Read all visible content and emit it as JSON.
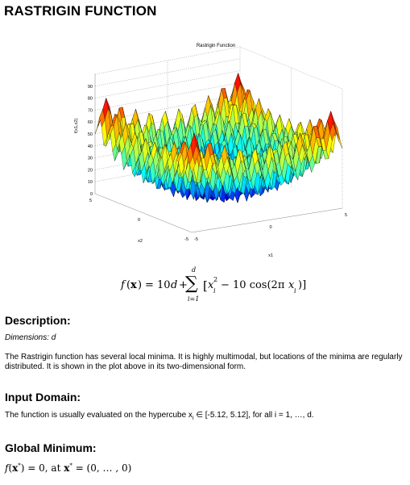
{
  "page": {
    "title": "RASTRIGIN FUNCTION"
  },
  "figure": {
    "plot_title": "Rastrigin Function",
    "zlabel": "f(x1,x2)",
    "xlabel": "x1",
    "ylabel": "x2",
    "z_ticks": [
      "0",
      "10",
      "20",
      "30",
      "40",
      "50",
      "60",
      "70",
      "80",
      "90"
    ],
    "x1_ticks": [
      "-5",
      "0",
      "5"
    ],
    "x2_ticks": [
      "5",
      "0",
      "-5"
    ],
    "colors": {
      "low": "#0000a0",
      "mid": "#30d070",
      "high": "#b00000"
    }
  },
  "formula": {
    "lhs_f": "f",
    "lhs_x": "x",
    "eq": "= 10",
    "d": "d",
    "plus": "+",
    "sum_symbol": "∑",
    "sum_top": "d",
    "sum_bottom": "i=1",
    "bracket_open": "[",
    "x": "x",
    "sub_i": "i",
    "sup_2": "2",
    "minus_term": "− 10 cos(2π",
    "x2": "x",
    "sub_i2": "i",
    "close": ")]"
  },
  "description": {
    "heading": "Description:",
    "dimensions": "Dimensions: d",
    "text": "The Rastrigin function has several local minima. It is highly multimodal, but locations of the minima are regularly distributed. It is shown in the plot above in its two-dimensional form."
  },
  "input_domain": {
    "heading": "Input Domain:",
    "text_prefix": "The function is usually evaluated on the hypercube x",
    "text_sub": "i",
    "text_suffix": " ∈ [-5.12, 5.12], for all i = 1, …, d."
  },
  "global_minimum": {
    "heading": "Global Minimum:",
    "f": "f",
    "x_star": "x",
    "star": "*",
    "eq0": ") = 0,  at ",
    "x_star2": "x",
    "star2": "*",
    "tuple": " = (0, … , 0)"
  }
}
